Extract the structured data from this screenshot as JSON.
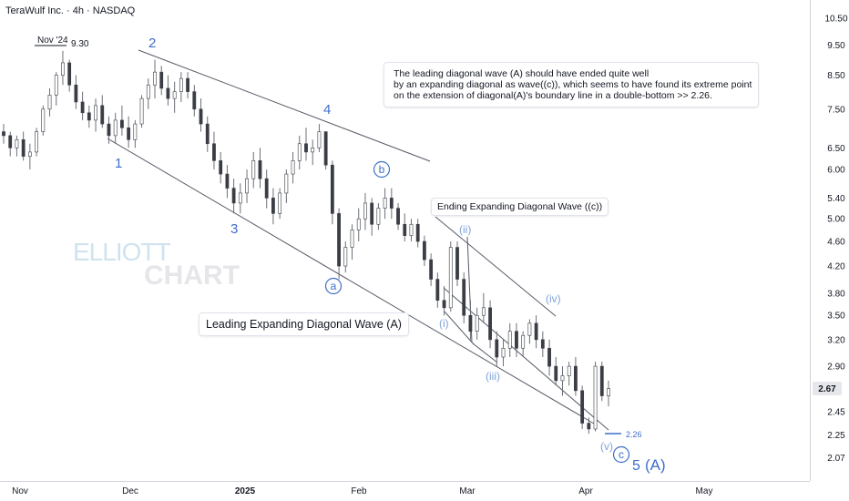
{
  "header": {
    "title": "TeraWulf Inc. · 4h · NASDAQ"
  },
  "watermark": {
    "line1": "ELLIOTT",
    "line2": "CHART"
  },
  "notes": {
    "main": [
      "The leading diagonal wave (A) should have ended quite well",
      " by an expanding diagonal as wave((c)), which seems to have found its extreme point",
      " on the extension of diagonal(A)'s boundary line in a double-bottom >> 2.26."
    ],
    "ending_diagonal": "Ending Expanding Diagonal Wave ((c))",
    "leading_diagonal": "Leading Expanding Diagonal Wave (A)"
  },
  "chart_data": {
    "type": "candlestick",
    "symbol": "TeraWulf Inc.",
    "interval": "4h",
    "exchange": "NASDAQ",
    "last_price": "2.67",
    "y_scale": "log",
    "ylim": [
      1.95,
      11.0
    ],
    "x_ticks": [
      "Nov",
      "Dec",
      "2025",
      "Feb",
      "Mar",
      "Apr",
      "May"
    ],
    "y_ticks": [
      "10.50",
      "9.50",
      "8.50",
      "7.50",
      "6.50",
      "6.00",
      "5.40",
      "5.00",
      "4.60",
      "4.20",
      "3.80",
      "3.50",
      "3.20",
      "2.90",
      "2.67",
      "2.45",
      "2.25",
      "2.07"
    ],
    "price_markers": [
      {
        "label": "Nov '24",
        "value": "9.30"
      },
      {
        "label": "",
        "value": "2.26"
      }
    ],
    "primary_waves": [
      "1",
      "2",
      "3",
      "4",
      "5",
      "(A)"
    ],
    "minor_waves": [
      "a",
      "b",
      "c"
    ],
    "sub_waves": [
      "(i)",
      "(ii)",
      "(iii)",
      "(iv)",
      "(v)"
    ],
    "series": [
      {
        "values": [
          [
            6.9,
            7.1,
            6.6,
            6.8
          ],
          [
            6.8,
            6.9,
            6.3,
            6.5
          ],
          [
            6.5,
            6.8,
            6.3,
            6.7
          ],
          [
            6.7,
            6.9,
            6.2,
            6.3
          ],
          [
            6.3,
            6.6,
            6.0,
            6.4
          ],
          [
            6.4,
            7.0,
            6.3,
            6.9
          ],
          [
            6.9,
            7.6,
            6.8,
            7.5
          ],
          [
            7.5,
            8.1,
            7.3,
            7.9
          ],
          [
            7.9,
            8.6,
            7.6,
            8.5
          ],
          [
            8.5,
            9.3,
            8.2,
            8.9
          ],
          [
            8.9,
            9.0,
            8.0,
            8.2
          ],
          [
            8.2,
            8.5,
            7.5,
            7.7
          ],
          [
            7.7,
            8.0,
            7.2,
            7.4
          ],
          [
            7.4,
            7.6,
            7.0,
            7.2
          ],
          [
            7.2,
            7.8,
            6.9,
            7.6
          ],
          [
            7.6,
            7.9,
            7.0,
            7.1
          ],
          [
            7.1,
            7.3,
            6.6,
            6.8
          ],
          [
            6.8,
            7.4,
            6.6,
            7.2
          ],
          [
            7.2,
            7.6,
            6.8,
            7.0
          ],
          [
            7.0,
            7.3,
            6.5,
            6.7
          ],
          [
            6.7,
            7.2,
            6.5,
            7.1
          ],
          [
            7.1,
            7.9,
            7.0,
            7.8
          ],
          [
            7.8,
            8.4,
            7.5,
            8.2
          ],
          [
            8.2,
            9.0,
            7.8,
            8.6
          ],
          [
            8.6,
            8.8,
            7.9,
            8.1
          ],
          [
            8.1,
            8.5,
            7.6,
            7.8
          ],
          [
            7.8,
            8.3,
            7.4,
            8.0
          ],
          [
            8.0,
            8.6,
            7.7,
            8.4
          ],
          [
            8.4,
            8.6,
            7.8,
            8.0
          ],
          [
            8.0,
            8.2,
            7.3,
            7.5
          ],
          [
            7.5,
            7.8,
            6.9,
            7.1
          ],
          [
            7.1,
            7.3,
            6.4,
            6.6
          ],
          [
            6.6,
            6.9,
            6.0,
            6.2
          ],
          [
            6.2,
            6.4,
            5.7,
            5.9
          ],
          [
            5.9,
            6.1,
            5.4,
            5.6
          ],
          [
            5.6,
            5.8,
            5.1,
            5.3
          ],
          [
            5.3,
            5.7,
            5.1,
            5.5
          ],
          [
            5.5,
            6.0,
            5.3,
            5.8
          ],
          [
            5.8,
            6.4,
            5.6,
            6.2
          ],
          [
            6.2,
            6.5,
            5.6,
            5.8
          ],
          [
            5.8,
            6.0,
            5.2,
            5.4
          ],
          [
            5.4,
            5.6,
            4.9,
            5.1
          ],
          [
            5.1,
            5.6,
            5.0,
            5.5
          ],
          [
            5.5,
            6.0,
            5.3,
            5.9
          ],
          [
            5.9,
            6.4,
            5.7,
            6.2
          ],
          [
            6.2,
            6.8,
            6.0,
            6.6
          ],
          [
            6.6,
            7.0,
            6.2,
            6.4
          ],
          [
            6.4,
            6.7,
            6.1,
            6.5
          ],
          [
            6.5,
            7.1,
            6.4,
            6.9
          ],
          [
            6.9,
            6.9,
            6.0,
            6.1
          ],
          [
            6.1,
            6.2,
            4.9,
            5.1
          ],
          [
            5.1,
            5.2,
            4.0,
            4.2
          ],
          [
            4.2,
            4.6,
            4.1,
            4.5
          ],
          [
            4.5,
            4.9,
            4.3,
            4.8
          ],
          [
            4.8,
            5.2,
            4.6,
            5.0
          ],
          [
            5.0,
            5.5,
            4.8,
            5.3
          ],
          [
            5.3,
            5.4,
            4.7,
            4.9
          ],
          [
            4.9,
            5.3,
            4.8,
            5.2
          ],
          [
            5.2,
            5.6,
            5.0,
            5.4
          ],
          [
            5.4,
            5.6,
            5.0,
            5.2
          ],
          [
            5.2,
            5.3,
            4.8,
            4.9
          ],
          [
            4.9,
            5.1,
            4.6,
            4.7
          ],
          [
            4.7,
            5.0,
            4.6,
            4.9
          ],
          [
            4.9,
            5.0,
            4.5,
            4.6
          ],
          [
            4.6,
            4.7,
            4.2,
            4.3
          ],
          [
            4.3,
            4.4,
            3.9,
            4.0
          ],
          [
            4.0,
            4.1,
            3.6,
            3.7
          ],
          [
            3.7,
            3.9,
            3.5,
            3.6
          ],
          [
            3.6,
            4.6,
            3.55,
            4.5
          ],
          [
            4.5,
            4.6,
            3.9,
            4.0
          ],
          [
            4.0,
            4.1,
            3.4,
            3.5
          ],
          [
            3.5,
            3.7,
            3.2,
            3.3
          ],
          [
            3.3,
            3.6,
            3.2,
            3.5
          ],
          [
            3.5,
            3.8,
            3.4,
            3.6
          ],
          [
            3.6,
            3.7,
            3.1,
            3.2
          ],
          [
            3.2,
            3.3,
            2.9,
            3.0
          ],
          [
            3.0,
            3.2,
            2.9,
            3.1
          ],
          [
            3.1,
            3.4,
            3.0,
            3.3
          ],
          [
            3.3,
            3.4,
            3.0,
            3.1
          ],
          [
            3.1,
            3.3,
            3.0,
            3.25
          ],
          [
            3.25,
            3.45,
            3.15,
            3.4
          ],
          [
            3.4,
            3.5,
            3.1,
            3.2
          ],
          [
            3.2,
            3.3,
            3.0,
            3.1
          ],
          [
            3.1,
            3.2,
            2.8,
            2.9
          ],
          [
            2.9,
            3.0,
            2.7,
            2.75
          ],
          [
            2.75,
            2.9,
            2.6,
            2.8
          ],
          [
            2.8,
            2.95,
            2.7,
            2.9
          ],
          [
            2.9,
            3.0,
            2.6,
            2.65
          ],
          [
            2.65,
            2.7,
            2.3,
            2.35
          ],
          [
            2.35,
            2.4,
            2.26,
            2.3
          ],
          [
            2.3,
            2.95,
            2.28,
            2.9
          ],
          [
            2.9,
            2.95,
            2.55,
            2.6
          ],
          [
            2.6,
            2.75,
            2.5,
            2.67
          ]
        ]
      }
    ]
  }
}
